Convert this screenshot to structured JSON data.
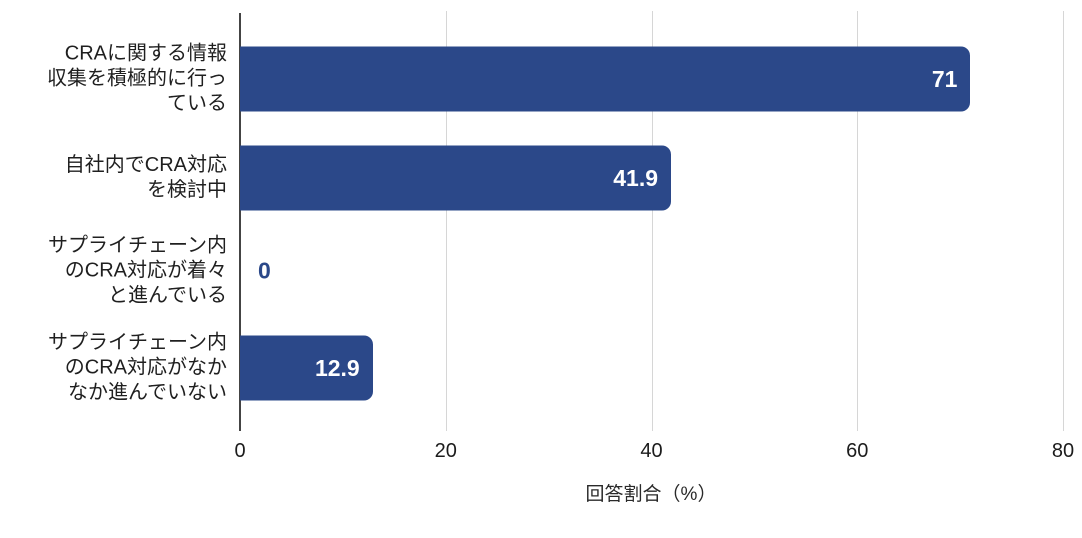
{
  "chart_data": {
    "type": "bar",
    "orientation": "horizontal",
    "title": "",
    "xlabel": "回答割合（%）",
    "ylabel": "",
    "categories": [
      [
        "CRAに関する情報",
        "収集を積極的に行っ",
        "ている"
      ],
      [
        "自社内でCRA対応",
        "を検討中"
      ],
      [
        "サプライチェーン内",
        "のCRA対応が着々",
        "と進んでいる"
      ],
      [
        "サプライチェーン内",
        "のCRA対応がなか",
        "なか進んでいない"
      ]
    ],
    "values": [
      71,
      41.9,
      0,
      12.9
    ],
    "value_labels": [
      "71",
      "41.9",
      "0",
      "12.9"
    ],
    "x_ticks": [
      0,
      20,
      40,
      60,
      80
    ],
    "xlim": [
      0,
      81.9
    ],
    "grid": true,
    "legend": "none",
    "colors": {
      "bar": "#2b4889",
      "value_label_inside": "#ffffff",
      "value_label_outside": "#2b4889",
      "gridline": "#d6d6d6",
      "axis_line": "#444444",
      "category_text": "#1f1f1f",
      "tick_text": "#1c1c1c",
      "axis_title_text": "#2a2a2a",
      "background": "#ffffff"
    }
  }
}
